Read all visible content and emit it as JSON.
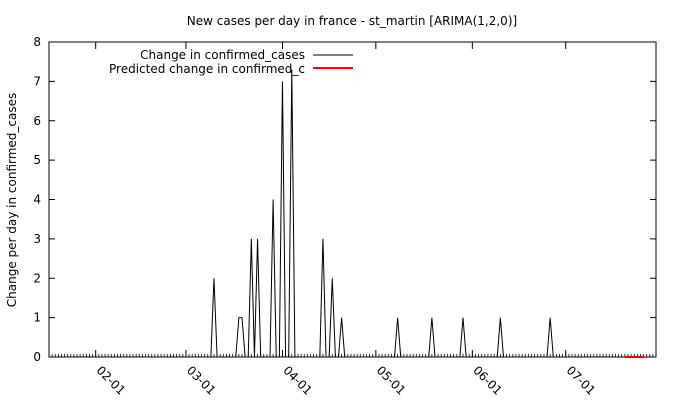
{
  "chart_data": {
    "type": "line",
    "title": "New cases per day in france - st_martin [ARIMA(1,2,0)]",
    "xlabel": "",
    "ylabel": "Change per day in confirmed_cases",
    "xlim": [
      "2020-01-17",
      "2020-07-30"
    ],
    "ylim": [
      0,
      8
    ],
    "grid": false,
    "legend_position": "top-left",
    "x_ticks": [
      {
        "date": "2020-02-01",
        "label": "02-01"
      },
      {
        "date": "2020-03-01",
        "label": "03-01"
      },
      {
        "date": "2020-04-01",
        "label": "04-01"
      },
      {
        "date": "2020-05-01",
        "label": "05-01"
      },
      {
        "date": "2020-06-01",
        "label": "06-01"
      },
      {
        "date": "2020-07-01",
        "label": "07-01"
      }
    ],
    "y_ticks": [
      "0",
      "1",
      "2",
      "3",
      "4",
      "5",
      "6",
      "7",
      "8"
    ],
    "series": [
      {
        "name": "Change in confirmed_cases",
        "color": "#000000",
        "points": [
          [
            "2020-01-22",
            0
          ],
          [
            "2020-03-09",
            0
          ],
          [
            "2020-03-10",
            2
          ],
          [
            "2020-03-11",
            0
          ],
          [
            "2020-03-17",
            0
          ],
          [
            "2020-03-18",
            1
          ],
          [
            "2020-03-19",
            1
          ],
          [
            "2020-03-20",
            0
          ],
          [
            "2020-03-21",
            0
          ],
          [
            "2020-03-22",
            3
          ],
          [
            "2020-03-23",
            0
          ],
          [
            "2020-03-24",
            3
          ],
          [
            "2020-03-25",
            0
          ],
          [
            "2020-03-28",
            0
          ],
          [
            "2020-03-29",
            4
          ],
          [
            "2020-03-30",
            0
          ],
          [
            "2020-03-31",
            0
          ],
          [
            "2020-04-01",
            7
          ],
          [
            "2020-04-02",
            0
          ],
          [
            "2020-04-03",
            0
          ],
          [
            "2020-04-04",
            7.3
          ],
          [
            "2020-04-05",
            0
          ],
          [
            "2020-04-13",
            0
          ],
          [
            "2020-04-14",
            3
          ],
          [
            "2020-04-15",
            0
          ],
          [
            "2020-04-16",
            0
          ],
          [
            "2020-04-17",
            2
          ],
          [
            "2020-04-18",
            0
          ],
          [
            "2020-04-19",
            0
          ],
          [
            "2020-04-20",
            1
          ],
          [
            "2020-04-21",
            0
          ],
          [
            "2020-05-07",
            0
          ],
          [
            "2020-05-08",
            1
          ],
          [
            "2020-05-09",
            0
          ],
          [
            "2020-05-18",
            0
          ],
          [
            "2020-05-19",
            1
          ],
          [
            "2020-05-20",
            0
          ],
          [
            "2020-05-28",
            0
          ],
          [
            "2020-05-29",
            1
          ],
          [
            "2020-05-30",
            0
          ],
          [
            "2020-06-09",
            0
          ],
          [
            "2020-06-10",
            1
          ],
          [
            "2020-06-11",
            0
          ],
          [
            "2020-06-25",
            0
          ],
          [
            "2020-06-26",
            1
          ],
          [
            "2020-06-27",
            0
          ],
          [
            "2020-07-20",
            0
          ]
        ]
      },
      {
        "name": "Predicted change in confirmed_c",
        "color": "#ff0000",
        "points": [
          [
            "2020-07-20",
            0
          ],
          [
            "2020-07-26",
            0
          ]
        ]
      }
    ]
  }
}
